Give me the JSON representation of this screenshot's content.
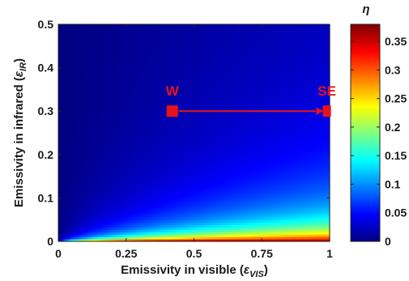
{
  "chart_data": {
    "type": "heatmap",
    "xlabel": {
      "main": "Emissivity in visible (",
      "sym": "ε",
      "sub": "VIS",
      "close": ")"
    },
    "ylabel": {
      "main": "Emissivity in infrared (",
      "sym": "ε",
      "sub": "IR",
      "close": ")"
    },
    "xlim": [
      0,
      1
    ],
    "ylim": [
      0,
      0.5
    ],
    "x_ticks": [
      {
        "value": 0,
        "label": "0"
      },
      {
        "value": 0.25,
        "label": "0.25"
      },
      {
        "value": 0.5,
        "label": "0.5"
      },
      {
        "value": 0.75,
        "label": "0.75"
      },
      {
        "value": 1,
        "label": "1"
      }
    ],
    "y_ticks": [
      {
        "value": 0,
        "label": "0"
      },
      {
        "value": 0.1,
        "label": "0.1"
      },
      {
        "value": 0.2,
        "label": "0.2"
      },
      {
        "value": 0.3,
        "label": "0.3"
      },
      {
        "value": 0.4,
        "label": "0.4"
      },
      {
        "value": 0.5,
        "label": "0.5"
      }
    ],
    "colorbar": {
      "title": "η",
      "range": [
        0,
        0.38
      ],
      "colormap": "jet",
      "ticks": [
        {
          "value": 0,
          "label": "0"
        },
        {
          "value": 0.05,
          "label": "0.05"
        },
        {
          "value": 0.1,
          "label": "0.1"
        },
        {
          "value": 0.15,
          "label": "0.15"
        },
        {
          "value": 0.2,
          "label": "0.2"
        },
        {
          "value": 0.25,
          "label": "0.25"
        },
        {
          "value": 0.3,
          "label": "0.3"
        },
        {
          "value": 0.35,
          "label": "0.35"
        }
      ]
    },
    "field": "eta = 0.38 * x / (x + 30*y)",
    "annotations": [
      {
        "label": "W",
        "x": 0.42,
        "y": 0.3
      },
      {
        "label": "SE",
        "x": 0.99,
        "y": 0.3
      }
    ],
    "arrow": {
      "from": [
        0.42,
        0.3
      ],
      "to": [
        0.99,
        0.3
      ]
    },
    "annotation_color": "#e8131a",
    "grid": false
  }
}
